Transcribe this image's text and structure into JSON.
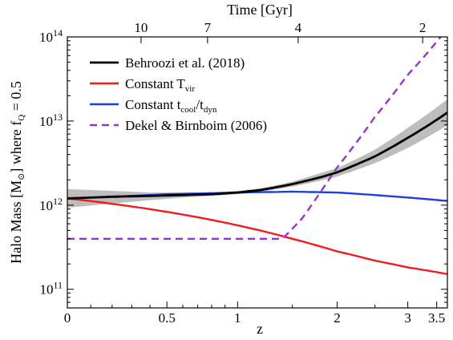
{
  "chart_data": {
    "type": "line",
    "xlabel": "z",
    "ylabel": "Halo Mass [M⊙] where fQ = 0.5",
    "x2label": "Time [Gyr]",
    "xscale": "log(1+z)",
    "yscale": "log",
    "xlim": [
      0,
      3.7
    ],
    "ylim": [
      60000000000.0,
      100000000000000.0
    ],
    "x_ticks": [
      0,
      0.5,
      1,
      2,
      3,
      3.5
    ],
    "x_tick_labels": [
      "0",
      "0.5",
      "1",
      "2",
      "3",
      "3.5"
    ],
    "top_ticks_gyr": [
      10,
      7,
      4,
      2
    ],
    "top_tick_labels": [
      "10",
      "7",
      "4",
      "2"
    ],
    "top_tick_z": [
      0.35,
      0.77,
      1.56,
      3.25
    ],
    "y_ticks": [
      100000000000.0,
      1000000000000.0,
      10000000000000.0,
      100000000000000.0
    ],
    "y_tick_labels": [
      {
        "base": "10",
        "exp": "11"
      },
      {
        "base": "10",
        "exp": "12"
      },
      {
        "base": "10",
        "exp": "13"
      },
      {
        "base": "10",
        "exp": "14"
      }
    ],
    "legend_position": "top-left",
    "series": [
      {
        "name": "Behroozi et al. (2018)",
        "color": "#000000",
        "style": "solid",
        "z": [
          0,
          0.2,
          0.4,
          0.6,
          0.8,
          1.0,
          1.2,
          1.5,
          1.8,
          2.0,
          2.5,
          3.0,
          3.7
        ],
        "log_mass": [
          12.08,
          12.1,
          12.11,
          12.12,
          12.13,
          12.15,
          12.18,
          12.25,
          12.33,
          12.39,
          12.58,
          12.8,
          13.1
        ],
        "band_lower": [
          11.97,
          12.02,
          12.06,
          12.09,
          12.11,
          12.13,
          12.16,
          12.22,
          12.29,
          12.34,
          12.5,
          12.68,
          12.95
        ],
        "band_upper": [
          12.19,
          12.17,
          12.15,
          12.15,
          12.15,
          12.17,
          12.2,
          12.28,
          12.38,
          12.44,
          12.66,
          12.92,
          13.26
        ]
      },
      {
        "name": "Constant T",
        "subscript": "vir",
        "color": "#ee1c1c",
        "style": "solid",
        "z": [
          0,
          0.5,
          1,
          1.5,
          2,
          2.5,
          3,
          3.7
        ],
        "log_mass": [
          12.08,
          11.92,
          11.76,
          11.6,
          11.45,
          11.34,
          11.26,
          11.18
        ]
      },
      {
        "name": "Constant t",
        "subscript_parts": [
          "cool",
          "dyn"
        ],
        "color": "#1f3fe0",
        "style": "solid",
        "z": [
          0,
          0.5,
          1,
          1.5,
          2,
          2.5,
          3,
          3.7
        ],
        "log_mass": [
          12.08,
          12.13,
          12.15,
          12.16,
          12.15,
          12.12,
          12.09,
          12.05
        ]
      },
      {
        "name": "Dekel & Birnboim (2006)",
        "color": "#9933cc",
        "style": "dashed",
        "z": [
          0,
          1.4,
          1.6,
          1.8,
          2.0,
          2.5,
          3.0,
          3.7
        ],
        "log_mass": [
          11.6,
          11.6,
          11.84,
          12.15,
          12.45,
          13.05,
          13.55,
          14.1
        ]
      }
    ]
  }
}
